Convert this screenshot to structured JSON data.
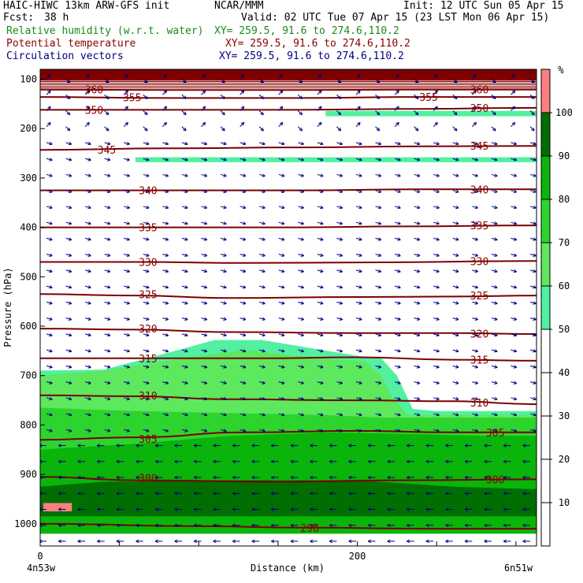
{
  "header": {
    "model": "HAIC-HIWC 13km ARW-GFS init",
    "source": "NCAR/MMM",
    "init": "Init: 12 UTC Sun 05 Apr 15",
    "fcst_label": "Fcst:",
    "fcst_value": "38 h",
    "valid": "Valid: 02 UTC Tue 07 Apr 15 (23 LST Mon 06 Apr 15)",
    "fields": [
      {
        "name": "Relative humidity (w.r.t. water)",
        "xy": "XY= 259.5, 91.6 to 274.6,110.2",
        "color": "#1a8a1a"
      },
      {
        "name": "Potential temperature",
        "xy": "XY= 259.5, 91.6 to 274.6,110.2",
        "color": "#8b0000"
      },
      {
        "name": "Circulation vectors",
        "xy": "XY= 259.5, 91.6 to 274.6,110.2",
        "color": "#000080"
      }
    ]
  },
  "chart_data": {
    "type": "heatmap",
    "description_fields": [
      "relative humidity fill",
      "potential temperature contours",
      "circulation vectors"
    ],
    "ylabel": "Pressure (hPa)",
    "xlabel": "Distance (km)",
    "x_left_label": "4n53w",
    "x_right_label": "6n51w",
    "xlim": [
      0,
      313
    ],
    "ylim": [
      1050,
      60
    ],
    "x_ticks": [
      0,
      200
    ],
    "y_ticks": [
      100,
      200,
      300,
      400,
      500,
      600,
      700,
      800,
      900,
      1000
    ],
    "colorbar": {
      "unit": "%",
      "ticks": [
        10,
        20,
        30,
        40,
        50,
        60,
        70,
        80,
        90,
        100
      ],
      "bins": [
        {
          "lo": 50,
          "hi": 60,
          "color": "#52f0a0"
        },
        {
          "lo": 60,
          "hi": 70,
          "color": "#5de85d"
        },
        {
          "lo": 70,
          "hi": 80,
          "color": "#2ed42e"
        },
        {
          "lo": 80,
          "hi": 90,
          "color": "#0ab40a"
        },
        {
          "lo": 90,
          "hi": 100,
          "color": "#006e00"
        },
        {
          "lo": 100,
          "hi": 110,
          "color": "#fa8080"
        }
      ]
    },
    "rh_regions": [
      {
        "label": "50-60",
        "color": "#52f0a0",
        "outline": [
          [
            0,
            690
          ],
          [
            40,
            688
          ],
          [
            85,
            650
          ],
          [
            110,
            628
          ],
          [
            140,
            628
          ],
          [
            200,
            660
          ],
          [
            215,
            665
          ],
          [
            225,
            700
          ],
          [
            235,
            768
          ],
          [
            250,
            772
          ],
          [
            313,
            772
          ],
          [
            313,
            1020
          ],
          [
            0,
            1020
          ]
        ]
      },
      {
        "label": "60-70",
        "color": "#5de85d",
        "outline": [
          [
            0,
            700
          ],
          [
            40,
            690
          ],
          [
            90,
            665
          ],
          [
            130,
            648
          ],
          [
            160,
            660
          ],
          [
            205,
            672
          ],
          [
            215,
            700
          ],
          [
            222,
            745
          ],
          [
            232,
            780
          ],
          [
            313,
            780
          ],
          [
            313,
            1020
          ],
          [
            0,
            1020
          ]
        ]
      },
      {
        "label": "70-80",
        "color": "#2ed42e",
        "outline": [
          [
            0,
            765
          ],
          [
            60,
            772
          ],
          [
            150,
            778
          ],
          [
            180,
            780
          ],
          [
            215,
            785
          ],
          [
            313,
            785
          ],
          [
            313,
            1020
          ],
          [
            0,
            1020
          ]
        ]
      },
      {
        "label": "80-90",
        "color": "#0ab40a",
        "outline": [
          [
            0,
            850
          ],
          [
            60,
            838
          ],
          [
            120,
            822
          ],
          [
            180,
            815
          ],
          [
            230,
            818
          ],
          [
            280,
            822
          ],
          [
            313,
            822
          ],
          [
            313,
            1020
          ],
          [
            0,
            1020
          ]
        ]
      },
      {
        "label": "90-100",
        "color": "#006e00",
        "outline": [
          [
            0,
            925
          ],
          [
            40,
            915
          ],
          [
            120,
            912
          ],
          [
            200,
            912
          ],
          [
            260,
            925
          ],
          [
            313,
            930
          ],
          [
            313,
            990
          ],
          [
            200,
            995
          ],
          [
            100,
            995
          ],
          [
            0,
            998
          ]
        ]
      },
      {
        "label": "80-90 lower",
        "color": "#0ab40a",
        "outline": [
          [
            0,
            985
          ],
          [
            313,
            985
          ],
          [
            313,
            1020
          ],
          [
            0,
            1020
          ]
        ]
      },
      {
        "label": "top band 100+",
        "color": "#7a0000",
        "outline": [
          [
            0,
            60
          ],
          [
            313,
            60
          ],
          [
            313,
            103
          ],
          [
            0,
            103
          ]
        ]
      },
      {
        "label": "upper thin 50-60",
        "color": "#52f0a0",
        "outline": [
          [
            180,
            164
          ],
          [
            313,
            164
          ],
          [
            313,
            175
          ],
          [
            180,
            175
          ]
        ]
      },
      {
        "label": "upper thin 50-60 b",
        "color": "#52f0a0",
        "outline": [
          [
            60,
            258
          ],
          [
            313,
            258
          ],
          [
            313,
            268
          ],
          [
            60,
            268
          ]
        ]
      },
      {
        "label": "100+ patch",
        "color": "#fa8080",
        "outline": [
          [
            2,
            958
          ],
          [
            20,
            958
          ],
          [
            20,
            975
          ],
          [
            2,
            975
          ]
        ]
      }
    ],
    "theta_contours": [
      {
        "value": 298,
        "points": [
          [
            0,
            1000
          ],
          [
            100,
            1005
          ],
          [
            170,
            1008
          ],
          [
            250,
            1010
          ],
          [
            313,
            1010
          ]
        ]
      },
      {
        "value": 300,
        "points": [
          [
            0,
            905
          ],
          [
            60,
            912
          ],
          [
            150,
            915
          ],
          [
            230,
            912
          ],
          [
            313,
            910
          ]
        ]
      },
      {
        "value": 305,
        "points": [
          [
            0,
            830
          ],
          [
            60,
            825
          ],
          [
            130,
            815
          ],
          [
            200,
            812
          ],
          [
            260,
            815
          ],
          [
            313,
            815
          ]
        ]
      },
      {
        "value": 310,
        "points": [
          [
            0,
            740
          ],
          [
            60,
            742
          ],
          [
            120,
            748
          ],
          [
            200,
            750
          ],
          [
            260,
            752
          ],
          [
            313,
            758
          ]
        ]
      },
      {
        "value": 315,
        "points": [
          [
            0,
            665
          ],
          [
            80,
            665
          ],
          [
            140,
            665
          ],
          [
            200,
            663
          ],
          [
            260,
            668
          ],
          [
            313,
            670
          ]
        ]
      },
      {
        "value": 320,
        "points": [
          [
            0,
            605
          ],
          [
            60,
            607
          ],
          [
            120,
            612
          ],
          [
            200,
            614
          ],
          [
            260,
            614
          ],
          [
            313,
            616
          ]
        ]
      },
      {
        "value": 325,
        "points": [
          [
            0,
            535
          ],
          [
            60,
            538
          ],
          [
            120,
            543
          ],
          [
            200,
            541
          ],
          [
            260,
            540
          ],
          [
            313,
            538
          ]
        ]
      },
      {
        "value": 330,
        "points": [
          [
            0,
            470
          ],
          [
            60,
            470
          ],
          [
            130,
            472
          ],
          [
            200,
            471
          ],
          [
            313,
            468
          ]
        ]
      },
      {
        "value": 335,
        "points": [
          [
            0,
            400
          ],
          [
            80,
            400
          ],
          [
            160,
            400
          ],
          [
            230,
            398
          ],
          [
            313,
            396
          ]
        ]
      },
      {
        "value": 340,
        "points": [
          [
            0,
            325
          ],
          [
            80,
            325
          ],
          [
            160,
            325
          ],
          [
            240,
            323
          ],
          [
            313,
            323
          ]
        ]
      },
      {
        "value": 345,
        "points": [
          [
            0,
            243
          ],
          [
            80,
            240
          ],
          [
            160,
            238
          ],
          [
            240,
            236
          ],
          [
            313,
            235
          ]
        ]
      },
      {
        "value": 350,
        "points": [
          [
            0,
            162
          ],
          [
            80,
            162
          ],
          [
            160,
            162
          ],
          [
            240,
            160
          ],
          [
            313,
            158
          ]
        ]
      },
      {
        "value": 355,
        "points": [
          [
            0,
            136
          ],
          [
            80,
            138
          ],
          [
            160,
            138
          ],
          [
            240,
            136
          ],
          [
            313,
            136
          ]
        ]
      },
      {
        "value": 360,
        "points": [
          [
            0,
            121
          ],
          [
            80,
            122
          ],
          [
            160,
            122
          ],
          [
            240,
            121
          ],
          [
            313,
            121
          ]
        ]
      }
    ],
    "theta_labels": [
      {
        "value": "360",
        "x": 34,
        "p": 121
      },
      {
        "value": "355",
        "x": 58,
        "p": 137
      },
      {
        "value": "350",
        "x": 34,
        "p": 162
      },
      {
        "value": "345",
        "x": 42,
        "p": 243
      },
      {
        "value": "340",
        "x": 68,
        "p": 325
      },
      {
        "value": "335",
        "x": 68,
        "p": 400
      },
      {
        "value": "330",
        "x": 68,
        "p": 470
      },
      {
        "value": "325",
        "x": 68,
        "p": 535
      },
      {
        "value": "320",
        "x": 68,
        "p": 605
      },
      {
        "value": "315",
        "x": 68,
        "p": 665
      },
      {
        "value": "310",
        "x": 68,
        "p": 740
      },
      {
        "value": "305",
        "x": 68,
        "p": 828
      },
      {
        "value": "300",
        "x": 68,
        "p": 907
      },
      {
        "value": "298",
        "x": 170,
        "p": 1008
      },
      {
        "value": "355",
        "x": 245,
        "p": 136
      },
      {
        "value": "360",
        "x": 277,
        "p": 121
      },
      {
        "value": "350",
        "x": 277,
        "p": 158
      },
      {
        "value": "345",
        "x": 277,
        "p": 235
      },
      {
        "value": "340",
        "x": 277,
        "p": 323
      },
      {
        "value": "335",
        "x": 277,
        "p": 396
      },
      {
        "value": "330",
        "x": 277,
        "p": 468
      },
      {
        "value": "325",
        "x": 277,
        "p": 538
      },
      {
        "value": "320",
        "x": 277,
        "p": 615
      },
      {
        "value": "315",
        "x": 277,
        "p": 668
      },
      {
        "value": "310",
        "x": 277,
        "p": 755
      },
      {
        "value": "305",
        "x": 287,
        "p": 815
      },
      {
        "value": "300",
        "x": 287,
        "p": 910
      }
    ],
    "vectors": {
      "cols": 26,
      "rows": 30,
      "color": "#000080"
    }
  }
}
